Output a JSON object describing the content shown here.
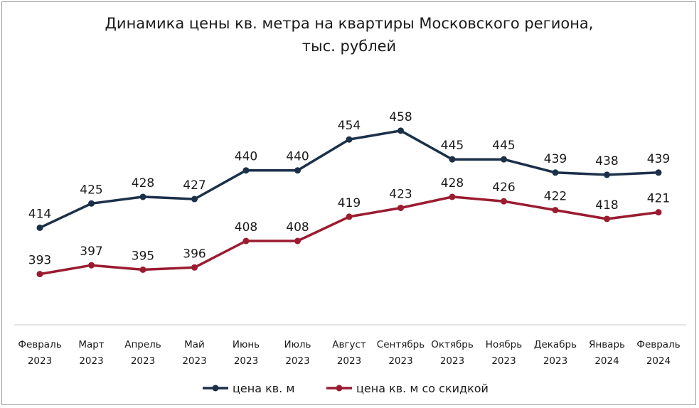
{
  "chart_data": {
    "type": "line",
    "title_line1": "Динамика цены кв. метра на квартиры Московского региона,",
    "title_line2": "тыс. рублей",
    "categories": [
      [
        "Февраль",
        "2023"
      ],
      [
        "Март",
        "2023"
      ],
      [
        "Апрель",
        "2023"
      ],
      [
        "Май",
        "2023"
      ],
      [
        "Июнь",
        "2023"
      ],
      [
        "Июль",
        "2023"
      ],
      [
        "Август",
        "2023"
      ],
      [
        "Сентябрь",
        "2023"
      ],
      [
        "Октябрь",
        "2023"
      ],
      [
        "Ноябрь",
        "2023"
      ],
      [
        "Декабрь",
        "2023"
      ],
      [
        "Январь",
        "2024"
      ],
      [
        "Февраль",
        "2024"
      ]
    ],
    "series": [
      {
        "name": "цена кв. м",
        "color": "#1b3049",
        "values": [
          414,
          425,
          428,
          427,
          440,
          440,
          454,
          458,
          445,
          445,
          439,
          438,
          439
        ]
      },
      {
        "name": "цена кв. м со скидкой",
        "color": "#9b1b30",
        "values": [
          393,
          397,
          395,
          396,
          408,
          408,
          419,
          423,
          428,
          426,
          422,
          418,
          421
        ]
      }
    ],
    "ylim": [
      370,
      485
    ],
    "grid": false,
    "y_axis_visible": false,
    "data_labels": true,
    "legend_position": "bottom"
  }
}
